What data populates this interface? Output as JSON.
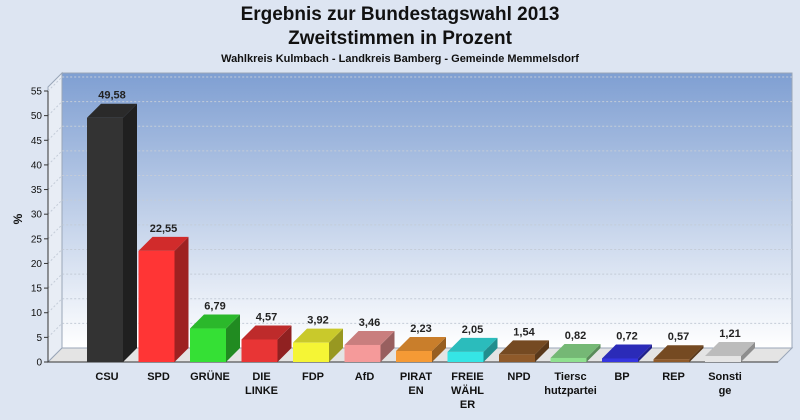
{
  "chart_data": {
    "type": "bar",
    "title": "Ergebnis zur Bundestagswahl 2013",
    "subtitle": "Zweitstimmen in Prozent",
    "caption": "Wahlkreis Kulmbach - Landkreis Bamberg - Gemeinde Memmelsdorf",
    "ylabel": "%",
    "ylim": [
      0,
      55
    ],
    "yticks": [
      "0",
      "5",
      "10",
      "15",
      "20",
      "25",
      "30",
      "35",
      "40",
      "45",
      "50",
      "55"
    ],
    "grid": true,
    "categories": [
      [
        "CSU"
      ],
      [
        "SPD"
      ],
      [
        "GRÜNE"
      ],
      [
        "DIE",
        "LINKE"
      ],
      [
        "FDP"
      ],
      [
        "AfD"
      ],
      [
        "PIRAT",
        "EN"
      ],
      [
        "FREIE",
        "WÄHL",
        "ER"
      ],
      [
        "NPD"
      ],
      [
        "Tiersc",
        "hutzpartei"
      ],
      [
        "BP"
      ],
      [
        "REP"
      ],
      [
        "Sonsti",
        "ge"
      ]
    ],
    "values": [
      49.58,
      22.55,
      6.79,
      4.57,
      3.92,
      3.46,
      2.23,
      2.05,
      1.54,
      0.82,
      0.72,
      0.57,
      1.21
    ],
    "value_labels": [
      "49,58",
      "22,55",
      "6,79",
      "4,57",
      "3,92",
      "3,46",
      "2,23",
      "2,05",
      "1,54",
      "0,82",
      "0,72",
      "0,57",
      "1,21"
    ],
    "colors": [
      "#333333",
      "#ff3535",
      "#35e035",
      "#e83535",
      "#f5f535",
      "#f59a9a",
      "#f59a35",
      "#35e5e5",
      "#8f5a2a",
      "#8fe08f",
      "#3535e0",
      "#8f5a2a",
      "#e5e5e5"
    ]
  }
}
